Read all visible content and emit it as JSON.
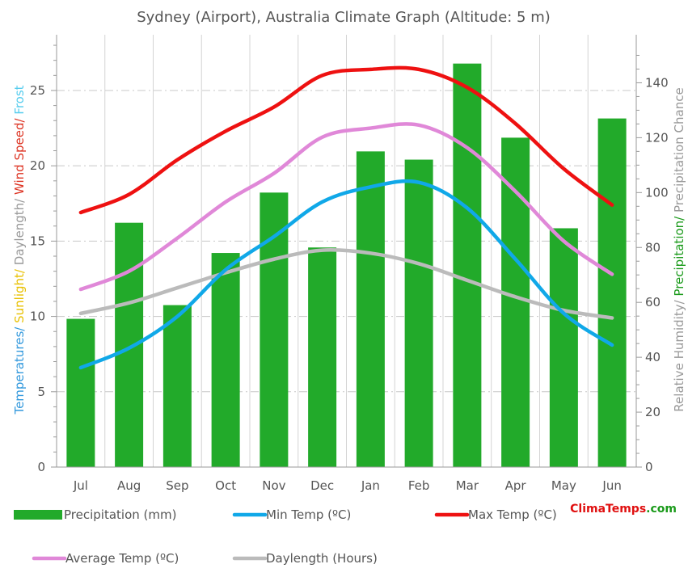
{
  "chart_data": {
    "type": "bar+line",
    "title": "Sydney (Airport), Australia Climate Graph (Altitude: 5 m)",
    "categories": [
      "Jul",
      "Aug",
      "Sep",
      "Oct",
      "Nov",
      "Dec",
      "Jan",
      "Feb",
      "Mar",
      "Apr",
      "May",
      "Jun"
    ],
    "left_axis": {
      "label_parts": [
        {
          "text": "Temperatures/",
          "color": "#3399dd"
        },
        {
          "text": " Sunlight/",
          "color": "#e8c000"
        },
        {
          "text": " Daylength/",
          "color": "#999999"
        },
        {
          "text": " Wind Speed/",
          "color": "#dd3322"
        },
        {
          "text": " Frost",
          "color": "#55ccee"
        }
      ],
      "ylim": [
        0,
        28.7
      ],
      "ticks": [
        0,
        5,
        10,
        15,
        20,
        25
      ]
    },
    "right_axis": {
      "label_parts": [
        {
          "text": "Relative Humidity/",
          "color": "#999999"
        },
        {
          "text": " Precipitation/",
          "color": "#1a9a1a"
        },
        {
          "text": " Precipitation Chance",
          "color": "#999999"
        }
      ],
      "ylim": [
        0,
        157.5
      ],
      "ticks": [
        0,
        20,
        40,
        60,
        80,
        100,
        120,
        140
      ]
    },
    "bars": {
      "name": "Precipitation (mm)",
      "color": "#22aa2a",
      "axis": "right",
      "values": [
        54,
        89,
        59,
        78,
        100,
        80,
        115,
        112,
        147,
        120,
        87,
        127
      ]
    },
    "series": [
      {
        "name": "Min Temp (ºC)",
        "color": "#10a8e8",
        "axis": "left",
        "values": [
          6.6,
          7.9,
          10.0,
          13.1,
          15.3,
          17.6,
          18.6,
          18.9,
          17.2,
          13.8,
          10.2,
          8.1
        ]
      },
      {
        "name": "Max Temp (ºC)",
        "color": "#ee1111",
        "axis": "left",
        "values": [
          16.9,
          18.1,
          20.4,
          22.3,
          23.9,
          26.0,
          26.4,
          26.4,
          25.2,
          22.8,
          19.8,
          17.4
        ]
      },
      {
        "name": "Average Temp (ºC)",
        "color": "#e088d8",
        "axis": "left",
        "values": [
          11.8,
          13.0,
          15.2,
          17.6,
          19.5,
          21.9,
          22.5,
          22.7,
          21.2,
          18.3,
          15.0,
          12.8
        ]
      },
      {
        "name": "Daylength (Hours)",
        "color": "#bbbbbb",
        "axis": "left",
        "values": [
          10.2,
          10.9,
          11.9,
          12.9,
          13.8,
          14.4,
          14.2,
          13.5,
          12.4,
          11.3,
          10.4,
          9.9
        ]
      }
    ],
    "grid": true,
    "legend_position": "bottom"
  },
  "brand": {
    "part1": "ClimaTemps",
    "part2": ".com"
  }
}
